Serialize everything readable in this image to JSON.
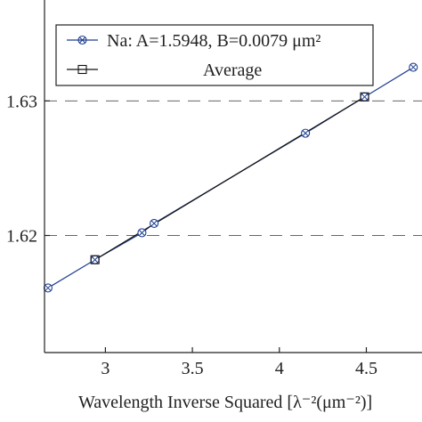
{
  "chart_data": {
    "type": "line",
    "xlabel": "Wavelength Inverse Squared [λ⁻²(μm⁻²)]",
    "ylabel": "",
    "xlim": [
      2.65,
      4.82
    ],
    "ylim": [
      1.6113,
      1.6375
    ],
    "grid": "dashed horizontal reference lines at y ticks",
    "x_ticks": [
      {
        "value": 3,
        "label": "3"
      },
      {
        "value": 3.5,
        "label": "3.5"
      },
      {
        "value": 4,
        "label": "4"
      },
      {
        "value": 4.5,
        "label": "4.5"
      }
    ],
    "y_ticks": [
      {
        "value": 1.62,
        "label": "1.62"
      },
      {
        "value": 1.63,
        "label": "1.63"
      }
    ],
    "legend": {
      "position": "top-left"
    },
    "series": [
      {
        "name": "Na: A=1.5948, B=0.0079 μm²",
        "marker": "circle-x",
        "color": "#1f3f8f",
        "x": [
          2.67,
          2.94,
          3.21,
          3.28,
          4.15,
          4.49,
          4.77
        ],
        "y": [
          1.6161,
          1.6182,
          1.6202,
          1.6209,
          1.6276,
          1.6303,
          1.6325
        ]
      },
      {
        "name": "Average",
        "marker": "square",
        "color": "#111111",
        "x": [
          2.94,
          4.49
        ],
        "y": [
          1.6182,
          1.6303
        ]
      }
    ]
  }
}
